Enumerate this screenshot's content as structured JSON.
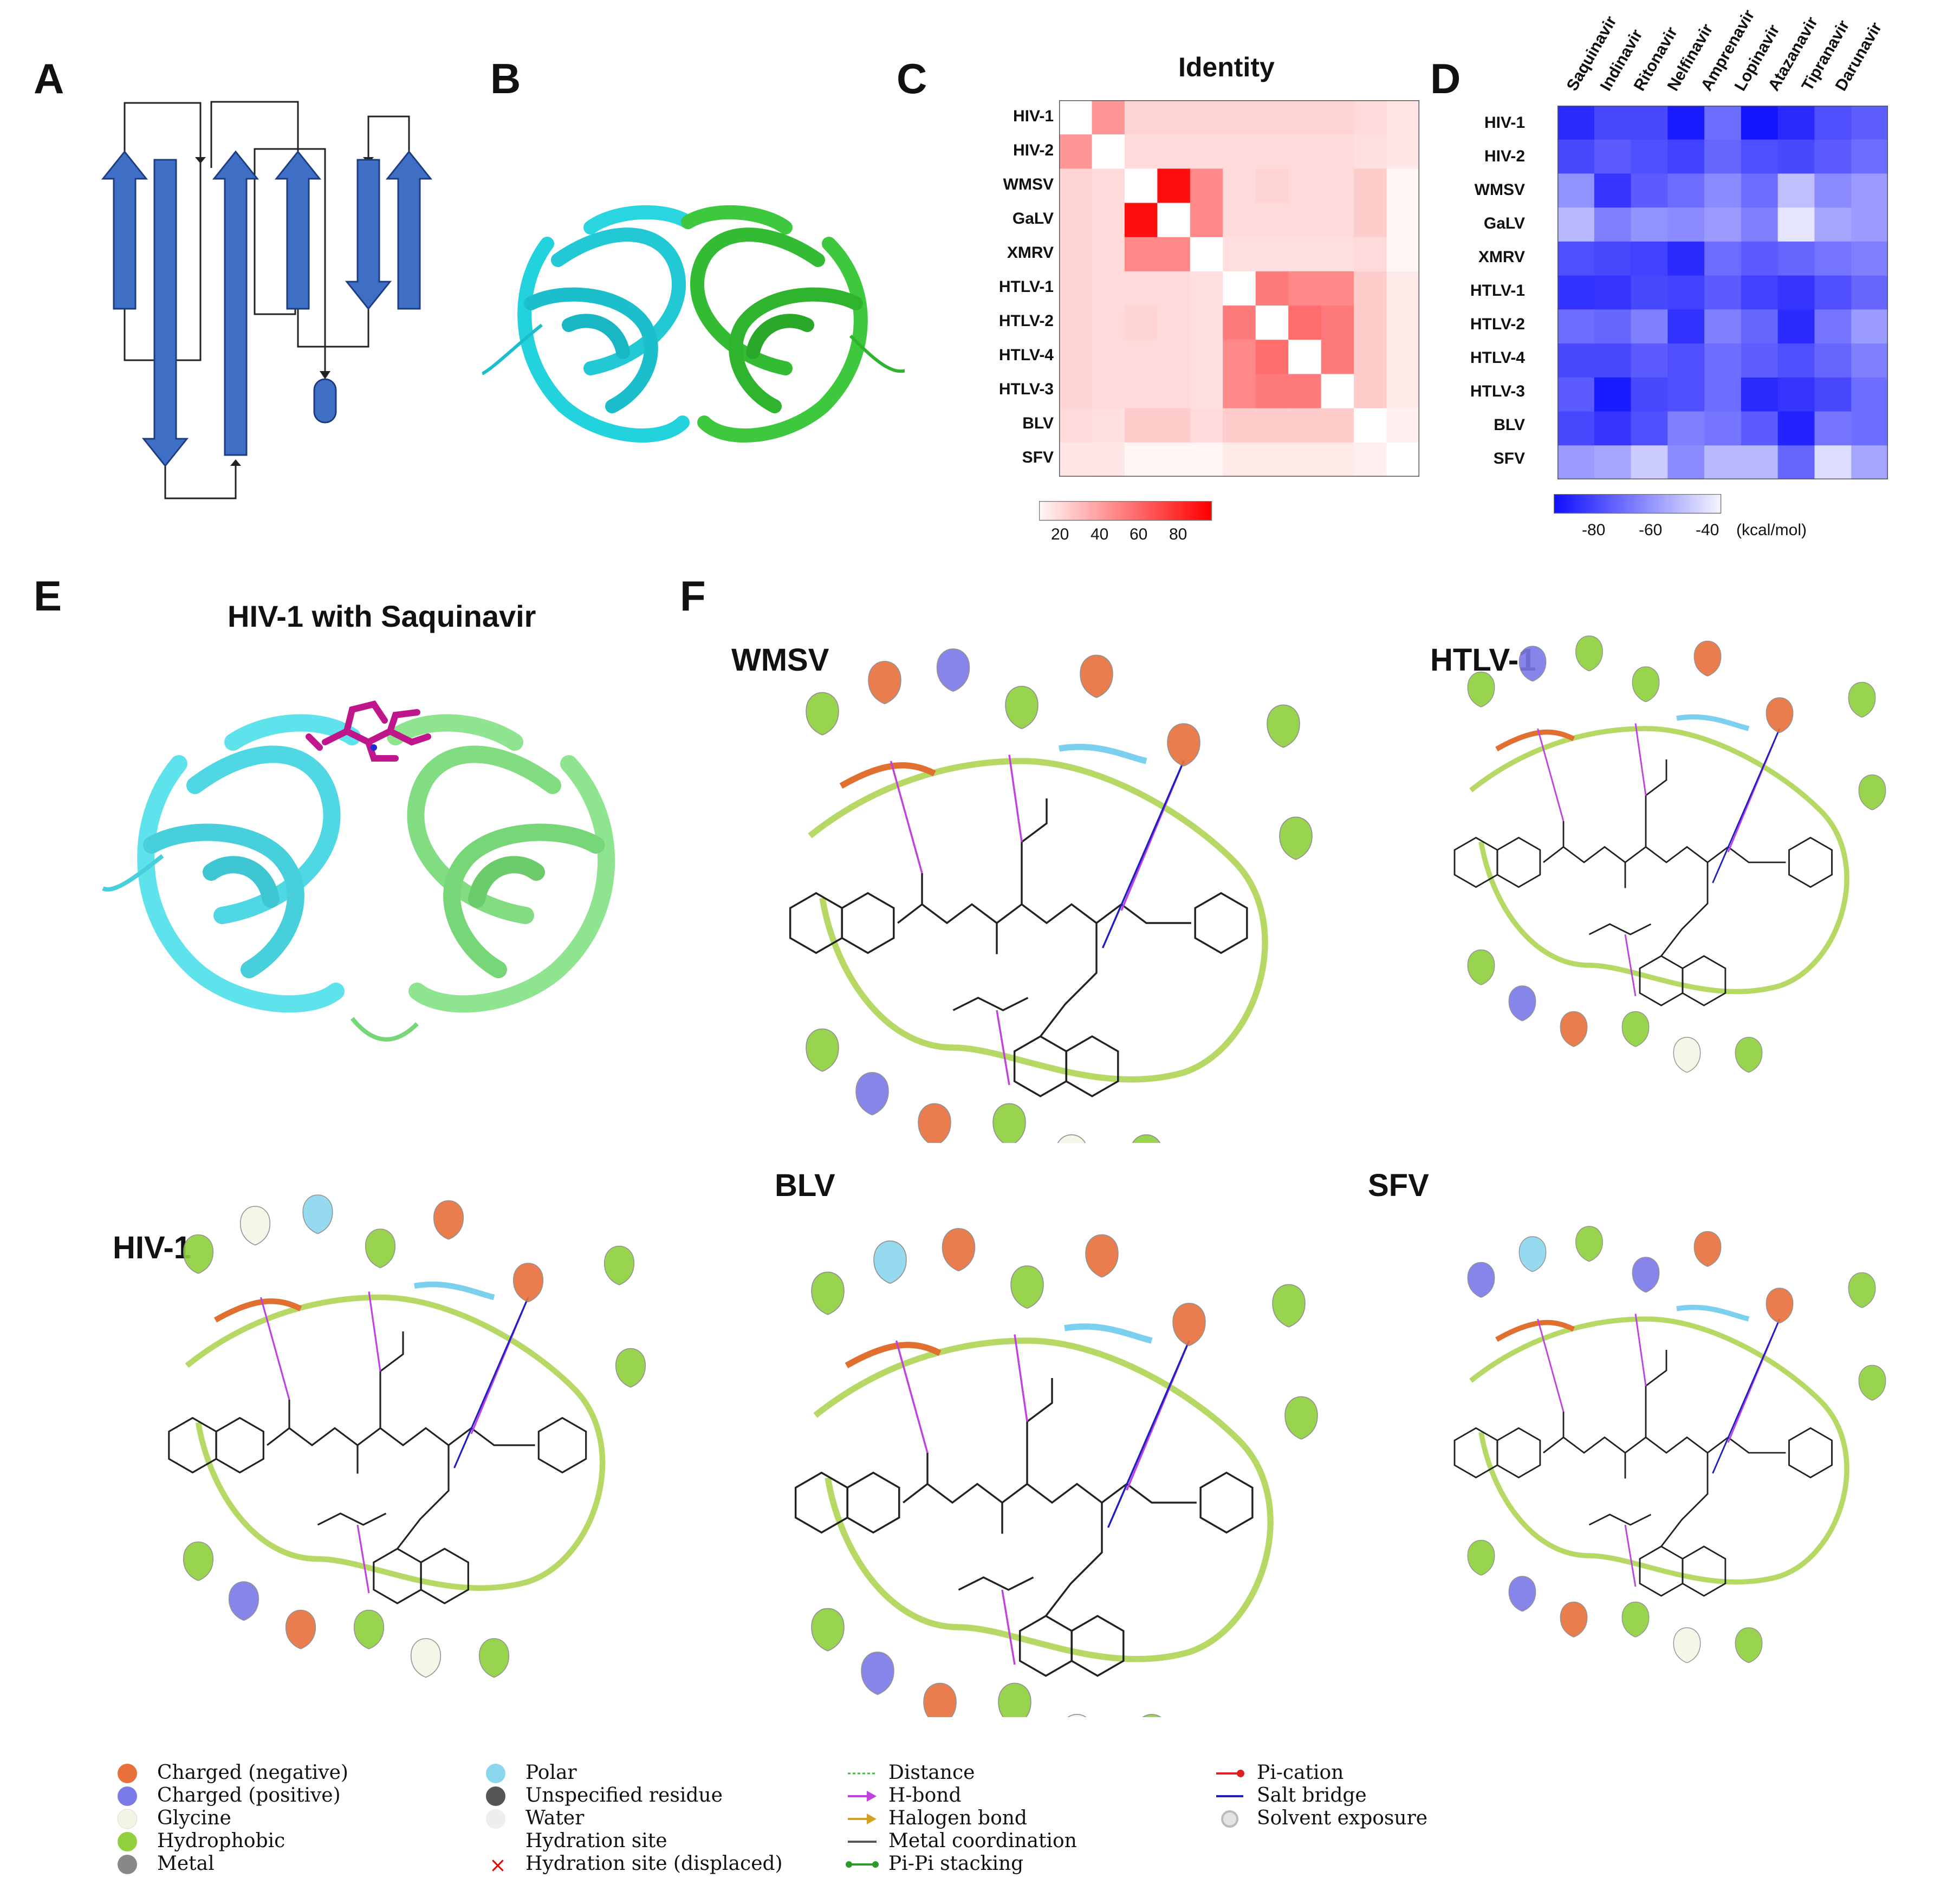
{
  "panels": {
    "A": "A",
    "B": "B",
    "C": "C",
    "D": "D",
    "E": "E",
    "F": "F"
  },
  "panel_c": {
    "title": "Identity",
    "rows": [
      "HIV-1",
      "HIV-2",
      "WMSV",
      "GaLV",
      "XMRV",
      "HTLV-1",
      "HTLV-2",
      "HTLV-4",
      "HTLV-3",
      "BLV",
      "SFV"
    ],
    "colorbar_ticks": [
      "20",
      "40",
      "60",
      "80"
    ]
  },
  "panel_d": {
    "rows": [
      "HIV-1",
      "HIV-2",
      "WMSV",
      "GaLV",
      "XMRV",
      "HTLV-1",
      "HTLV-2",
      "HTLV-4",
      "HTLV-3",
      "BLV",
      "SFV"
    ],
    "cols": [
      "Saquinavir",
      "Indinavir",
      "Ritonavir",
      "Nelfinavir",
      "Amprenavir",
      "Lopinavir",
      "Atazanavir",
      "Tipranavir",
      "Darunavir"
    ],
    "colorbar_ticks": [
      "-80",
      "-60",
      "-40"
    ],
    "colorbar_unit": "(kcal/mol)"
  },
  "panel_e": {
    "title": "HIV-1 with Saquinavir"
  },
  "panel_f": {
    "complexes": [
      "WMSV",
      "HTLV-1",
      "HIV-1",
      "BLV",
      "SFV"
    ]
  },
  "legend": {
    "col1": [
      "Charged (negative)",
      "Charged (positive)",
      "Glycine",
      "Hydrophobic",
      "Metal"
    ],
    "col2": [
      "Polar",
      "Unspecified residue",
      "Water",
      "Hydration site",
      "Hydration site (displaced)"
    ],
    "col3": [
      "Distance",
      "H-bond",
      "Halogen bond",
      "Metal coordination",
      "Pi-Pi stacking"
    ],
    "col4": [
      "Pi-cation",
      "Salt bridge",
      "Solvent exposure"
    ]
  },
  "colors": {
    "strand_blue": "#3f6fc4",
    "chain_a": "#29d6e0",
    "chain_b": "#3ec83e",
    "identity_max": "#ff0000",
    "energy_min": "#1010ff",
    "negative": "#e8703a",
    "positive": "#7a7ae8",
    "polar": "#8ad6ee",
    "hydrophobic": "#8fd03c",
    "glycine": "#f4f4e6"
  },
  "chart_data": [
    {
      "type": "heatmap",
      "title": "Identity",
      "rows": [
        "HIV-1",
        "HIV-2",
        "WMSV",
        "GaLV",
        "XMRV",
        "HTLV-1",
        "HTLV-2",
        "HTLV-4",
        "HTLV-3",
        "BLV",
        "SFV"
      ],
      "cols": [
        "HIV-1",
        "HIV-2",
        "WMSV",
        "GaLV",
        "XMRV",
        "HTLV-1",
        "HTLV-2",
        "HTLV-4",
        "HTLV-3",
        "BLV",
        "SFV"
      ],
      "range": [
        10,
        100
      ],
      "values": [
        [
          0,
          45,
          22,
          22,
          22,
          22,
          22,
          22,
          22,
          20,
          16
        ],
        [
          45,
          0,
          20,
          20,
          20,
          20,
          20,
          20,
          20,
          18,
          15
        ],
        [
          22,
          20,
          0,
          95,
          50,
          20,
          22,
          20,
          20,
          25,
          10
        ],
        [
          22,
          20,
          95,
          0,
          50,
          20,
          20,
          20,
          20,
          25,
          10
        ],
        [
          22,
          20,
          50,
          50,
          0,
          18,
          18,
          18,
          18,
          20,
          10
        ],
        [
          22,
          20,
          20,
          20,
          18,
          0,
          55,
          50,
          50,
          25,
          14
        ],
        [
          22,
          20,
          22,
          20,
          18,
          55,
          0,
          60,
          55,
          25,
          14
        ],
        [
          22,
          20,
          20,
          20,
          18,
          50,
          60,
          0,
          55,
          25,
          14
        ],
        [
          22,
          20,
          20,
          20,
          18,
          50,
          55,
          55,
          0,
          25,
          14
        ],
        [
          20,
          18,
          25,
          25,
          20,
          25,
          25,
          25,
          25,
          0,
          12
        ],
        [
          16,
          15,
          10,
          10,
          10,
          14,
          14,
          14,
          14,
          12,
          0
        ]
      ]
    },
    {
      "type": "heatmap",
      "rows": [
        "HIV-1",
        "HIV-2",
        "WMSV",
        "GaLV",
        "XMRV",
        "HTLV-1",
        "HTLV-2",
        "HTLV-4",
        "HTLV-3",
        "BLV",
        "SFV"
      ],
      "cols": [
        "Saquinavir",
        "Indinavir",
        "Ritonavir",
        "Nelfinavir",
        "Amprenavir",
        "Lopinavir",
        "Atazanavir",
        "Tipranavir",
        "Darunavir"
      ],
      "unit": "kcal/mol",
      "range": [
        -95,
        -35
      ],
      "values": [
        [
          -88,
          -80,
          -80,
          -92,
          -70,
          -94,
          -88,
          -78,
          -74
        ],
        [
          -80,
          -75,
          -78,
          -82,
          -72,
          -78,
          -80,
          -75,
          -70
        ],
        [
          -60,
          -85,
          -75,
          -70,
          -62,
          -70,
          -48,
          -62,
          -58
        ],
        [
          -50,
          -65,
          -60,
          -62,
          -58,
          -65,
          -38,
          -55,
          -58
        ],
        [
          -78,
          -80,
          -82,
          -88,
          -70,
          -75,
          -72,
          -68,
          -65
        ],
        [
          -86,
          -85,
          -80,
          -82,
          -75,
          -82,
          -85,
          -78,
          -72
        ],
        [
          -70,
          -72,
          -65,
          -86,
          -65,
          -72,
          -88,
          -68,
          -58
        ],
        [
          -80,
          -80,
          -75,
          -78,
          -70,
          -74,
          -78,
          -72,
          -65
        ],
        [
          -75,
          -92,
          -80,
          -78,
          -70,
          -88,
          -85,
          -80,
          -70
        ],
        [
          -80,
          -85,
          -78,
          -65,
          -68,
          -75,
          -90,
          -68,
          -70
        ],
        [
          -58,
          -55,
          -45,
          -62,
          -50,
          -50,
          -72,
          -40,
          -55
        ]
      ]
    }
  ]
}
